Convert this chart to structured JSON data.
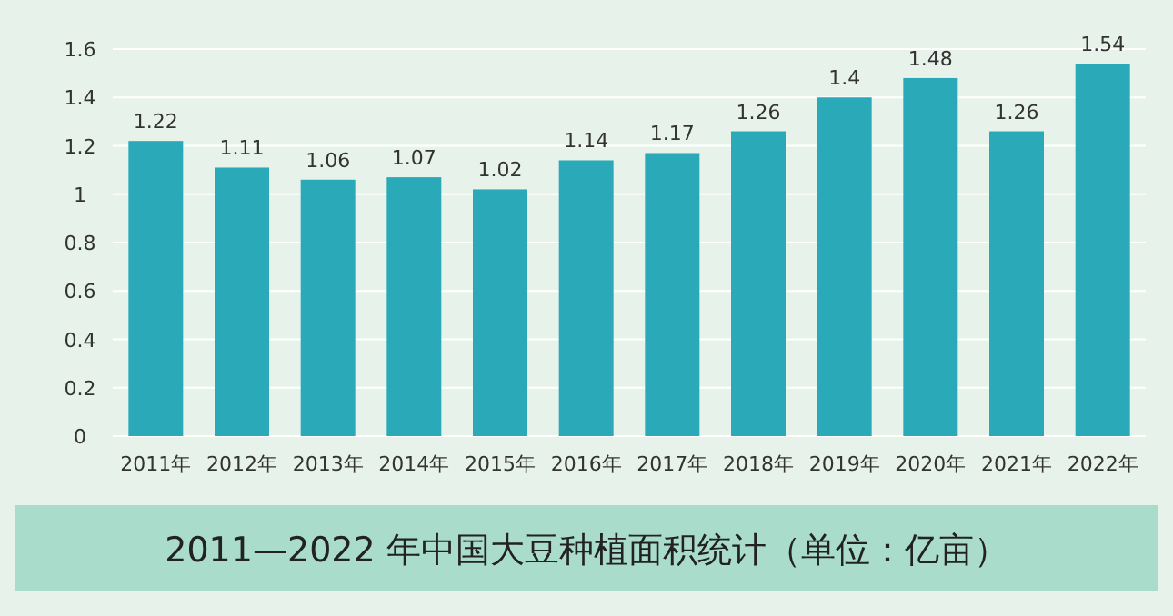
{
  "chart_data": {
    "type": "bar",
    "title": "2011—2022 年中国大豆种植面积统计（单位：亿亩）",
    "categories": [
      "2011年",
      "2012年",
      "2013年",
      "2014年",
      "2015年",
      "2016年",
      "2017年",
      "2018年",
      "2019年",
      "2020年",
      "2021年",
      "2022年"
    ],
    "values": [
      1.22,
      1.11,
      1.06,
      1.07,
      1.02,
      1.14,
      1.17,
      1.26,
      1.4,
      1.48,
      1.26,
      1.54
    ],
    "color": "#2aaab8",
    "ylim": [
      0,
      1.6
    ],
    "yticks": [
      0,
      0.2,
      0.4,
      0.6,
      0.8,
      1,
      1.2,
      1.4,
      1.6
    ],
    "grid": "y",
    "data_labels": true
  }
}
